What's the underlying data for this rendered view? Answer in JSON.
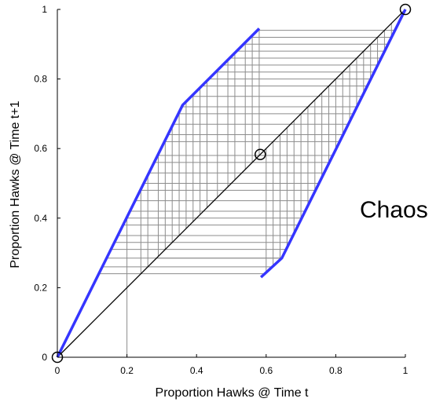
{
  "chart_data": {
    "type": "line",
    "xlabel": "Proportion Hawks @ Time t",
    "ylabel": "Proportion Hawks @ Time t+1",
    "annotation": "Chaos",
    "xlim": [
      0,
      1
    ],
    "ylim": [
      0,
      1
    ],
    "x_ticks": [
      "0",
      "0.2",
      "0.4",
      "0.6",
      "0.8",
      "1"
    ],
    "y_ticks": [
      "0",
      "0.2",
      "0.4",
      "0.6",
      "0.8",
      "1"
    ],
    "colors": {
      "map": "#3535ff",
      "diagonal": "#000000",
      "cobweb": "#8c8c8c"
    },
    "map_segments": [
      {
        "x": [
          0,
          0.36,
          0.58
        ],
        "y": [
          0,
          0.725,
          0.945
        ]
      },
      {
        "x": [
          0.585,
          0.645,
          1.0
        ],
        "y": [
          0.23,
          0.285,
          1.0
        ]
      }
    ],
    "diagonal": {
      "x": [
        0,
        1
      ],
      "y": [
        0,
        1
      ]
    },
    "fixed_points": [
      {
        "x": 0,
        "y": 0
      },
      {
        "x": 0.583,
        "y": 0.583
      },
      {
        "x": 1,
        "y": 1
      }
    ],
    "cobweb_vertical_x": [
      0.2,
      0.24,
      0.26,
      0.29,
      0.31,
      0.33,
      0.35,
      0.37,
      0.39,
      0.41,
      0.43,
      0.46,
      0.49,
      0.51,
      0.54,
      0.56,
      0.58,
      0.6,
      0.62,
      0.64,
      0.66,
      0.68,
      0.7,
      0.72,
      0.74,
      0.76,
      0.78,
      0.8,
      0.82,
      0.84,
      0.86,
      0.88,
      0.9,
      0.92,
      0.94,
      0.96
    ],
    "cobweb_horizontal_y": [
      0.24,
      0.26,
      0.285,
      0.31,
      0.33,
      0.35,
      0.38,
      0.4,
      0.42,
      0.45,
      0.48,
      0.5,
      0.53,
      0.56,
      0.58,
      0.62,
      0.64,
      0.67,
      0.7,
      0.72,
      0.75,
      0.78,
      0.8,
      0.82,
      0.84,
      0.86,
      0.88,
      0.9,
      0.92,
      0.94
    ]
  }
}
